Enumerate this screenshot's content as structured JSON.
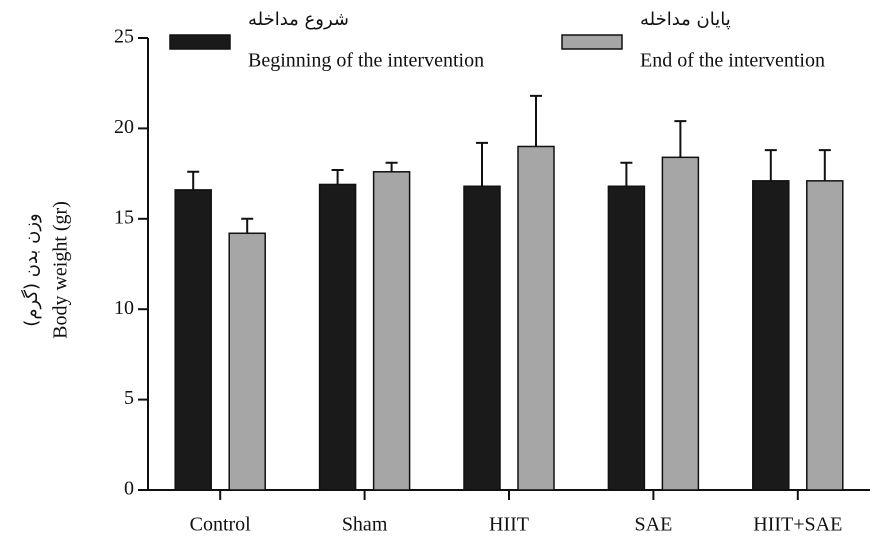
{
  "chart_data": {
    "type": "bar",
    "ylabel": "Body weight (gr)",
    "ylabel_fa": "وزن بدن (گرم)",
    "categories": [
      "Control",
      "Sham",
      "HIIT",
      "SAE",
      "HIIT+SAE"
    ],
    "series": [
      {
        "name": "Beginning of the intervention",
        "name_fa": "شروع مداخله",
        "color": "#1a1a1a",
        "values": [
          16.6,
          16.9,
          16.8,
          16.8,
          17.1
        ],
        "errors": [
          1.0,
          0.8,
          2.4,
          1.3,
          1.7
        ]
      },
      {
        "name": "End of the intervention",
        "name_fa": "پایان مداخله",
        "color": "#a6a6a6",
        "values": [
          14.2,
          17.6,
          19.0,
          18.4,
          17.1
        ],
        "errors": [
          0.8,
          0.5,
          2.8,
          2.0,
          1.7
        ]
      }
    ],
    "ylim": [
      0,
      25
    ],
    "yticks": [
      0,
      5,
      10,
      15,
      20,
      25
    ],
    "grid": false
  }
}
